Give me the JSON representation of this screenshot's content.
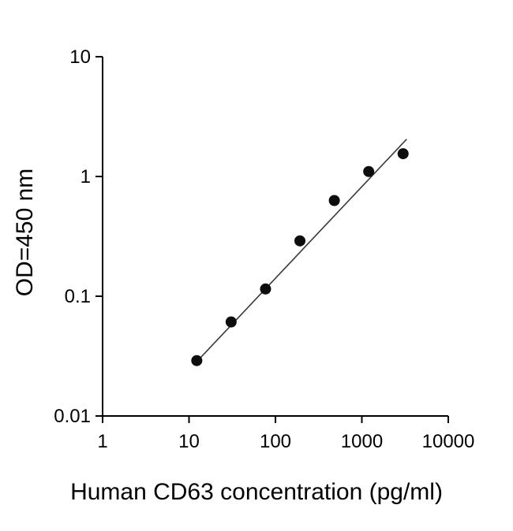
{
  "chart_data": {
    "type": "scatter",
    "title": "",
    "xlabel": "Human CD63 concentration (pg/ml)",
    "ylabel": "OD=450 nm",
    "xscale": "log",
    "yscale": "log",
    "xlim": [
      1,
      10000
    ],
    "ylim": [
      0.01,
      10
    ],
    "x_ticks": [
      1,
      10,
      100,
      1000,
      10000
    ],
    "x_tick_labels": [
      "1",
      "10",
      "100",
      "1000",
      "10000"
    ],
    "y_ticks": [
      0.01,
      0.1,
      1,
      10
    ],
    "y_tick_labels": [
      "0.01",
      "0.1",
      "1",
      "10"
    ],
    "grid": false,
    "legend": "none",
    "series": [
      {
        "name": "standard-points",
        "marker": "filled-circle",
        "x": [
          12.3,
          30.7,
          76.8,
          192,
          480,
          1200,
          3000
        ],
        "y": [
          0.029,
          0.061,
          0.115,
          0.29,
          0.63,
          1.1,
          1.55
        ]
      }
    ],
    "fit_line": {
      "x1": 11.5,
      "y1": 0.027,
      "x2": 3300,
      "y2": 2.05
    },
    "marker_color": "#0d0d0d",
    "line_color": "#3a3a3a",
    "axis_color": "#000000",
    "background_color": "#ffffff"
  }
}
